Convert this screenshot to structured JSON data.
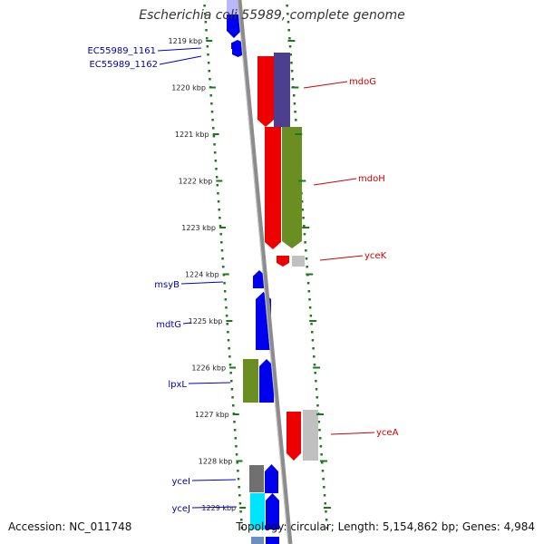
{
  "title": "Escherichia coli 55989, complete genome",
  "footer": {
    "accession": "Accession: NC_011748",
    "summary": "Topology: circular; Length: 5,154,862 bp; Genes: 4,984"
  },
  "colors": {
    "backbone": "#8c8c8c",
    "tick": "#1a7a1a",
    "label_left": "#0000aa",
    "label_right": "#cc0000",
    "leader_left": "#0000cc",
    "leader_right": "#cc0000"
  },
  "ticks": [
    {
      "kbp": 1219,
      "label": "1219 kbp"
    },
    {
      "kbp": 1220,
      "label": "1220 kbp"
    },
    {
      "kbp": 1221,
      "label": "1221 kbp"
    },
    {
      "kbp": 1222,
      "label": "1222 kbp"
    },
    {
      "kbp": 1223,
      "label": "1223 kbp"
    },
    {
      "kbp": 1224,
      "label": "1224 kbp"
    },
    {
      "kbp": 1225,
      "label": "1225 kbp"
    },
    {
      "kbp": 1226,
      "label": "1226 kbp"
    },
    {
      "kbp": 1227,
      "label": "1227 kbp"
    },
    {
      "kbp": 1228,
      "label": "1228 kbp"
    },
    {
      "kbp": 1229,
      "label": "1229 kbp"
    }
  ],
  "gene_labels": [
    {
      "name": "EC55989_1161",
      "side": "left"
    },
    {
      "name": "EC55989_1162",
      "side": "left"
    },
    {
      "name": "mdoG",
      "side": "right"
    },
    {
      "name": "mdoH",
      "side": "right"
    },
    {
      "name": "yceK",
      "side": "right"
    },
    {
      "name": "msyB",
      "side": "left"
    },
    {
      "name": "mdtG",
      "side": "left"
    },
    {
      "name": "lpxL",
      "side": "left"
    },
    {
      "name": "yceA",
      "side": "right"
    },
    {
      "name": "yceI",
      "side": "left"
    },
    {
      "name": "yceJ",
      "side": "left"
    }
  ]
}
